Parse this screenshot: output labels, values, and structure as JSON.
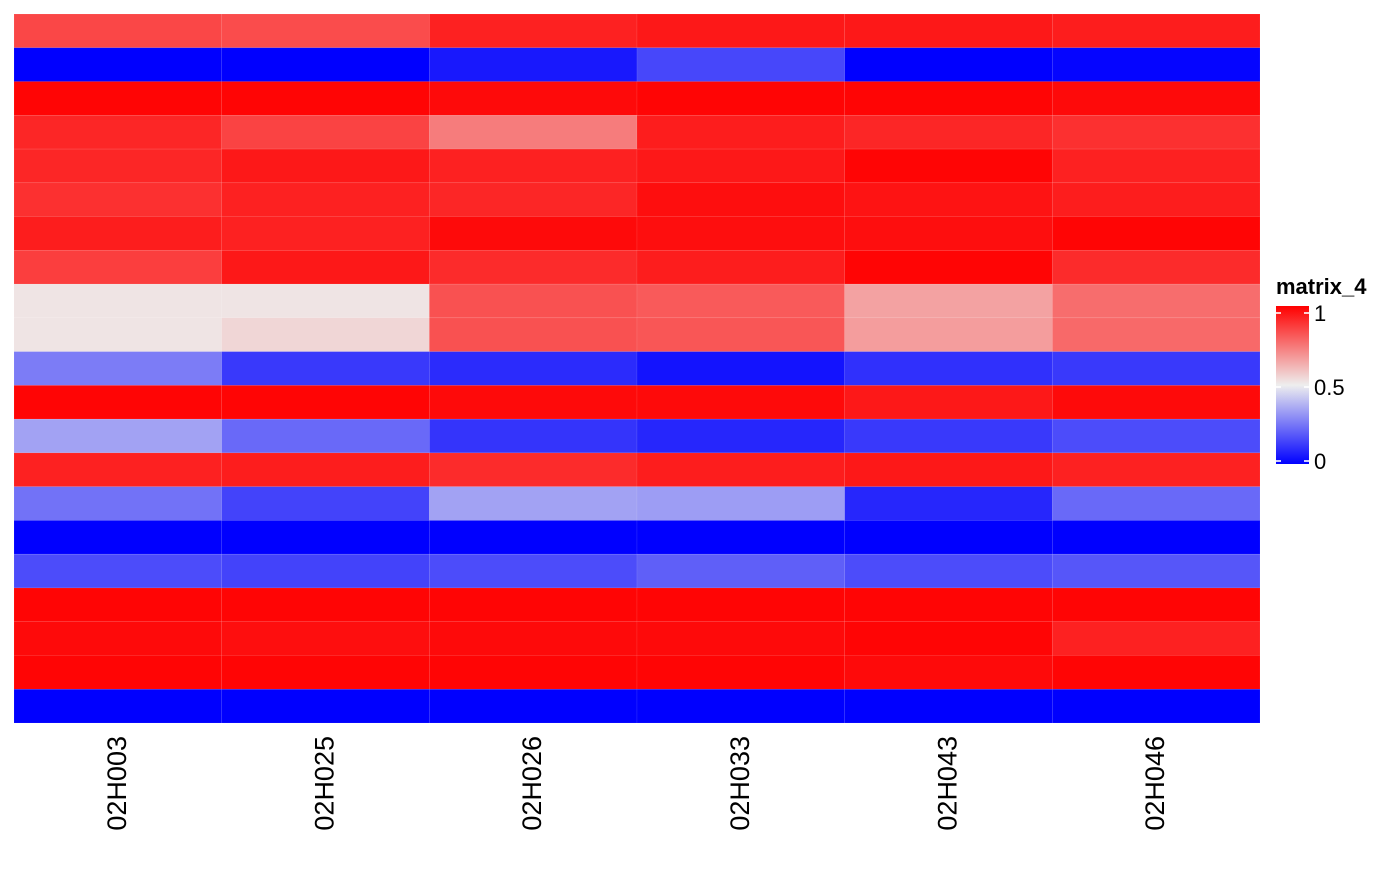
{
  "chart_data": {
    "type": "heatmap",
    "title": "",
    "xlabel": "",
    "ylabel": "",
    "columns": [
      "02H003",
      "02H025",
      "02H026",
      "02H033",
      "02H043",
      "02H046"
    ],
    "values": [
      [
        0.85,
        0.84,
        0.93,
        0.95,
        0.95,
        0.94
      ],
      [
        0.0,
        0.0,
        0.05,
        0.15,
        0.0,
        0.01
      ],
      [
        0.99,
        0.99,
        0.98,
        0.99,
        0.99,
        0.98
      ],
      [
        0.92,
        0.86,
        0.74,
        0.94,
        0.92,
        0.9
      ],
      [
        0.92,
        0.95,
        0.93,
        0.95,
        0.99,
        0.93
      ],
      [
        0.9,
        0.93,
        0.92,
        0.97,
        0.96,
        0.94
      ],
      [
        0.94,
        0.93,
        0.98,
        0.97,
        0.97,
        0.99
      ],
      [
        0.87,
        0.95,
        0.91,
        0.94,
        0.99,
        0.91
      ],
      [
        0.52,
        0.52,
        0.83,
        0.81,
        0.66,
        0.77
      ],
      [
        0.52,
        0.55,
        0.83,
        0.82,
        0.67,
        0.78
      ],
      [
        0.26,
        0.12,
        0.09,
        0.04,
        0.1,
        0.12
      ],
      [
        0.99,
        0.99,
        0.98,
        0.98,
        0.95,
        0.98
      ],
      [
        0.34,
        0.22,
        0.11,
        0.08,
        0.12,
        0.16
      ],
      [
        0.93,
        0.94,
        0.91,
        0.94,
        0.95,
        0.93
      ],
      [
        0.24,
        0.14,
        0.34,
        0.33,
        0.08,
        0.22
      ],
      [
        0.0,
        0.0,
        0.0,
        0.0,
        0.0,
        0.0
      ],
      [
        0.16,
        0.14,
        0.16,
        0.2,
        0.16,
        0.18
      ],
      [
        0.99,
        0.99,
        0.99,
        0.99,
        0.99,
        0.99
      ],
      [
        0.98,
        0.97,
        0.98,
        0.98,
        0.99,
        0.93
      ],
      [
        0.99,
        0.99,
        0.99,
        0.99,
        0.98,
        0.99
      ],
      [
        0.0,
        0.0,
        0.0,
        0.0,
        0.0,
        0.0
      ]
    ],
    "color_scale": {
      "min": 0,
      "mid": 0.5,
      "max": 1,
      "low_color": "#0000ff",
      "mid_color": "#eeeeee",
      "high_color": "#ff0000"
    },
    "legend": {
      "title": "matrix_4",
      "ticks": [
        {
          "value": 1,
          "label": "1"
        },
        {
          "value": 0.5,
          "label": "0.5"
        },
        {
          "value": 0,
          "label": "0"
        }
      ],
      "position": "right"
    },
    "grid": false
  }
}
